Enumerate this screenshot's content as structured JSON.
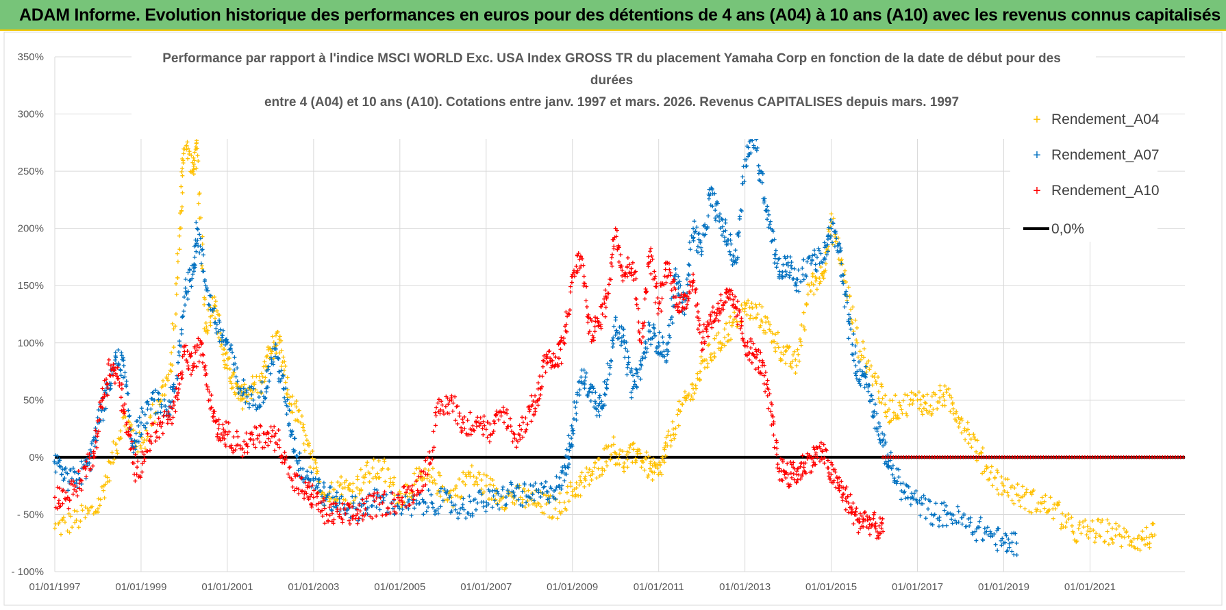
{
  "banner": {
    "title": "ADAM Informe. Evolution historique des performances en euros pour des détentions de 4 ans (A04) à 10 ans (A10) avec les revenus connus capitalisés"
  },
  "colors": {
    "banner_bg": "#77c479",
    "banner_border": "#f2c500",
    "A04": "#ffc000",
    "A07": "#0070c0",
    "A10": "#ff0000",
    "zero": "#000000",
    "grid": "#d9d9d9"
  },
  "chart_data": {
    "type": "scatter",
    "title_lines": [
      "Performance par rapport à l'indice MSCI WORLD Exc. USA Index GROSS TR  du placement Yamaha Corp en fonction de la date de début pour des",
      "durées",
      "entre 4 (A04) et 10 ans (A10). Cotations entre janv. 1997 et mars. 2026. Revenus CAPITALISES depuis mars. 1997"
    ],
    "ylim": [
      -100,
      350
    ],
    "yticks": [
      -100,
      -50,
      0,
      50,
      100,
      150,
      200,
      250,
      300,
      350
    ],
    "ytick_labels": [
      "- 100%",
      "- 50%",
      "0%",
      "50%",
      "100%",
      "150%",
      "200%",
      "250%",
      "300%",
      "350%"
    ],
    "xlim": [
      1997.0,
      2023.2
    ],
    "xticks": [
      1997,
      1999,
      2001,
      2003,
      2005,
      2007,
      2009,
      2011,
      2013,
      2015,
      2017,
      2019,
      2021
    ],
    "xtick_labels": [
      "01/01/1997",
      "01/01/1999",
      "01/01/2001",
      "01/01/2003",
      "01/01/2005",
      "01/01/2007",
      "01/01/2009",
      "01/01/2011",
      "01/01/2013",
      "01/01/2015",
      "01/01/2017",
      "01/01/2019",
      "01/01/2021"
    ],
    "legend": [
      "Rendement_A04",
      "Rendement_A07",
      "Rendement_A10",
      "0,0%"
    ],
    "series": [
      {
        "name": "Rendement_A04",
        "x": [
          1997.0,
          1997.5,
          1998.0,
          1998.3,
          1998.6,
          1999.0,
          1999.4,
          1999.7,
          1999.9,
          2000.0,
          2000.2,
          2000.3,
          2000.5,
          2000.7,
          2000.9,
          2001.1,
          2001.3,
          2001.5,
          2001.8,
          2002.0,
          2002.2,
          2002.4,
          2002.7,
          2003.0,
          2003.3,
          2003.6,
          2003.9,
          2004.2,
          2004.6,
          2005.0,
          2005.4,
          2005.8,
          2006.2,
          2006.6,
          2007.0,
          2007.4,
          2007.8,
          2008.2,
          2008.6,
          2009.0,
          2009.3,
          2009.6,
          2009.9,
          2010.2,
          2010.5,
          2010.8,
          2011.0,
          2011.2,
          2011.5,
          2011.8,
          2012.1,
          2012.4,
          2012.7,
          2013.0,
          2013.3,
          2013.6,
          2013.9,
          2014.2,
          2014.5,
          2014.8,
          2015.0,
          2015.3,
          2015.6,
          2016.0,
          2016.3,
          2016.6,
          2017.0,
          2017.3,
          2017.6,
          2017.9,
          2018.2,
          2018.6,
          2019.0,
          2019.4,
          2019.8,
          2020.2,
          2020.6,
          2021.0,
          2021.4,
          2021.8,
          2022.2,
          2022.5
        ],
        "y": [
          -62,
          -55,
          -45,
          -5,
          35,
          8,
          50,
          75,
          200,
          280,
          250,
          270,
          110,
          140,
          90,
          70,
          50,
          60,
          65,
          95,
          100,
          55,
          30,
          -10,
          -35,
          -25,
          -30,
          -15,
          -10,
          -35,
          -20,
          -20,
          -35,
          -15,
          -25,
          -35,
          -35,
          -40,
          -45,
          -30,
          -20,
          -10,
          10,
          -5,
          5,
          -10,
          -15,
          10,
          40,
          60,
          85,
          100,
          115,
          130,
          125,
          110,
          90,
          80,
          150,
          160,
          205,
          160,
          100,
          70,
          40,
          45,
          50,
          45,
          55,
          40,
          20,
          -10,
          -25,
          -35,
          -40,
          -45,
          -65,
          -65,
          -65,
          -70,
          -72,
          -68
        ]
      },
      {
        "name": "Rendement_A07",
        "x": [
          1997.0,
          1997.2,
          1997.5,
          1997.8,
          1998.0,
          1998.2,
          1998.4,
          1998.6,
          1998.8,
          1999.0,
          1999.3,
          1999.6,
          1999.8,
          2000.0,
          2000.2,
          2000.3,
          2000.5,
          2000.8,
          2001.0,
          2001.3,
          2001.6,
          2001.9,
          2002.1,
          2002.3,
          2002.5,
          2002.7,
          2003.0,
          2003.3,
          2003.6,
          2004.0,
          2004.4,
          2004.8,
          2005.2,
          2005.6,
          2006.0,
          2006.4,
          2006.8,
          2007.2,
          2007.6,
          2008.0,
          2008.4,
          2008.7,
          2008.9,
          2009.0,
          2009.2,
          2009.4,
          2009.6,
          2009.8,
          2010.0,
          2010.2,
          2010.4,
          2010.6,
          2010.8,
          2011.0,
          2011.2,
          2011.4,
          2011.6,
          2011.8,
          2012.0,
          2012.2,
          2012.4,
          2012.6,
          2012.8,
          2013.0,
          2013.2,
          2013.4,
          2013.6,
          2013.8,
          2014.0,
          2014.2,
          2014.5,
          2014.8,
          2015.0,
          2015.2,
          2015.4,
          2015.6,
          2015.8,
          2016.0,
          2016.2,
          2016.4,
          2016.7,
          2017.0,
          2017.4,
          2017.8,
          2018.2,
          2018.6,
          2019.0,
          2019.3
        ],
        "y": [
          -5,
          -20,
          -20,
          -5,
          30,
          55,
          85,
          80,
          10,
          30,
          50,
          40,
          60,
          140,
          160,
          200,
          150,
          110,
          100,
          60,
          50,
          60,
          95,
          60,
          20,
          -10,
          -20,
          -35,
          -40,
          -45,
          -38,
          -40,
          -45,
          -40,
          -38,
          -45,
          -40,
          -38,
          -30,
          -35,
          -30,
          -25,
          0,
          25,
          70,
          60,
          45,
          60,
          120,
          100,
          60,
          80,
          110,
          100,
          90,
          160,
          130,
          200,
          180,
          230,
          210,
          190,
          170,
          260,
          280,
          240,
          200,
          160,
          170,
          150,
          175,
          170,
          200,
          180,
          120,
          75,
          70,
          40,
          10,
          -10,
          -30,
          -40,
          -50,
          -50,
          -60,
          -65,
          -75,
          -75
        ]
      },
      {
        "name": "Rendement_A10",
        "x": [
          1997.0,
          1997.3,
          1997.6,
          1997.9,
          1998.1,
          1998.3,
          1998.5,
          1998.7,
          1998.9,
          1999.2,
          1999.5,
          1999.8,
          2000.0,
          2000.2,
          2000.4,
          2000.6,
          2000.8,
          2001.0,
          2001.3,
          2001.6,
          2001.9,
          2002.2,
          2002.5,
          2002.8,
          2003.0,
          2003.3,
          2003.6,
          2003.9,
          2004.2,
          2004.6,
          2005.0,
          2005.3,
          2005.6,
          2005.9,
          2006.2,
          2006.5,
          2006.8,
          2007.1,
          2007.4,
          2007.7,
          2008.0,
          2008.2,
          2008.4,
          2008.6,
          2008.8,
          2009.0,
          2009.2,
          2009.4,
          2009.6,
          2009.8,
          2010.0,
          2010.2,
          2010.4,
          2010.6,
          2010.8,
          2011.0,
          2011.2,
          2011.4,
          2011.6,
          2011.8,
          2012.0,
          2012.2,
          2012.4,
          2012.6,
          2012.8,
          2013.0,
          2013.2,
          2013.4,
          2013.6,
          2013.8,
          2014.0,
          2014.2,
          2014.4,
          2014.6,
          2014.8,
          2015.0,
          2015.2,
          2015.4,
          2015.6,
          2015.8,
          2016.0,
          2016.2
        ],
        "y": [
          -35,
          -35,
          -20,
          5,
          50,
          80,
          65,
          20,
          -15,
          15,
          30,
          40,
          90,
          80,
          100,
          50,
          25,
          20,
          10,
          15,
          20,
          15,
          -20,
          -30,
          -35,
          -50,
          -50,
          -52,
          -45,
          -40,
          -38,
          -30,
          -15,
          40,
          50,
          25,
          35,
          20,
          40,
          15,
          40,
          50,
          90,
          80,
          100,
          160,
          175,
          110,
          115,
          140,
          200,
          160,
          170,
          100,
          180,
          130,
          170,
          140,
          130,
          160,
          100,
          120,
          130,
          140,
          130,
          100,
          90,
          80,
          40,
          -10,
          -15,
          -15,
          -5,
          0,
          5,
          -15,
          -25,
          -40,
          -55,
          -55,
          -60,
          -65
        ]
      },
      {
        "name": "0,0%",
        "x": [
          1997.0,
          2023.2
        ],
        "y": [
          0,
          0
        ]
      }
    ],
    "a10_zero_segment": [
      2016.2,
      2023.2
    ]
  }
}
